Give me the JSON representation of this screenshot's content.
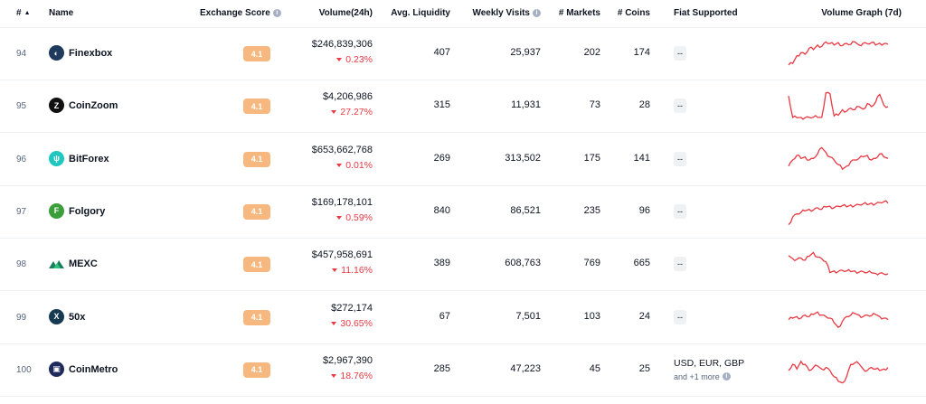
{
  "table": {
    "headers": {
      "rank": "#",
      "name": "Name",
      "score": "Exchange Score",
      "volume": "Volume(24h)",
      "liquidity": "Avg. Liquidity",
      "visits": "Weekly Visits",
      "markets": "# Markets",
      "coins": "# Coins",
      "fiat": "Fiat Supported",
      "graph": "Volume Graph (7d)"
    },
    "colors": {
      "accent_down": "#ea3943",
      "score_badge": "#f6b87e"
    },
    "rows": [
      {
        "rank": "94",
        "name": "Finexbox",
        "logo_icon": "finexbox-logo-icon",
        "logo_color": "#1f3a5c",
        "logo_glyph": "◐",
        "score": "4.1",
        "volume": "$246,839,306",
        "change": "0.23%",
        "liquidity": "407",
        "visits": "25,937",
        "markets": "202",
        "coins": "174",
        "fiat": "--",
        "fiat_more": ""
      },
      {
        "rank": "95",
        "name": "CoinZoom",
        "logo_icon": "coinzoom-logo-icon",
        "logo_color": "#111111",
        "logo_glyph": "Z",
        "score": "4.1",
        "volume": "$4,206,986",
        "change": "27.27%",
        "liquidity": "315",
        "visits": "11,931",
        "markets": "73",
        "coins": "28",
        "fiat": "--",
        "fiat_more": ""
      },
      {
        "rank": "96",
        "name": "BitForex",
        "logo_icon": "bitforex-logo-icon",
        "logo_color": "#1fc7c0",
        "logo_glyph": "ψ",
        "score": "4.1",
        "volume": "$653,662,768",
        "change": "0.01%",
        "liquidity": "269",
        "visits": "313,502",
        "markets": "175",
        "coins": "141",
        "fiat": "--",
        "fiat_more": ""
      },
      {
        "rank": "97",
        "name": "Folgory",
        "logo_icon": "folgory-logo-icon",
        "logo_color": "#3a9e3a",
        "logo_glyph": "F",
        "score": "4.1",
        "volume": "$169,178,101",
        "change": "0.59%",
        "liquidity": "840",
        "visits": "86,521",
        "markets": "235",
        "coins": "96",
        "fiat": "--",
        "fiat_more": ""
      },
      {
        "rank": "98",
        "name": "MEXC",
        "logo_icon": "mexc-logo-icon",
        "logo_color": "#ffffff",
        "logo_glyph": "",
        "score": "4.1",
        "volume": "$457,958,691",
        "change": "11.16%",
        "liquidity": "389",
        "visits": "608,763",
        "markets": "769",
        "coins": "665",
        "fiat": "--",
        "fiat_more": ""
      },
      {
        "rank": "99",
        "name": "50x",
        "logo_icon": "fiftyx-logo-icon",
        "logo_color": "#163a52",
        "logo_glyph": "X",
        "score": "4.1",
        "volume": "$272,174",
        "change": "30.65%",
        "liquidity": "67",
        "visits": "7,501",
        "markets": "103",
        "coins": "24",
        "fiat": "--",
        "fiat_more": ""
      },
      {
        "rank": "100",
        "name": "CoinMetro",
        "logo_icon": "coinmetro-logo-icon",
        "logo_color": "#1f2a5c",
        "logo_glyph": "▣",
        "score": "4.1",
        "volume": "$2,967,390",
        "change": "18.76%",
        "liquidity": "285",
        "visits": "47,223",
        "markets": "45",
        "coins": "25",
        "fiat": "USD, EUR, GBP",
        "fiat_more": "and +1 more"
      }
    ]
  }
}
